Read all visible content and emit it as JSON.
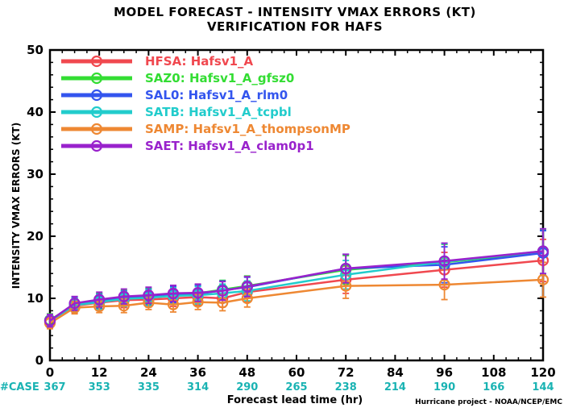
{
  "chart_data": {
    "type": "line",
    "title": "MODEL FORECAST - INTENSITY VMAX ERRORS (KT)",
    "subtitle": "VERIFICATION FOR HAFS",
    "xlabel": "Forecast lead time (hr)",
    "ylabel": "INTENSITY VMAX ERRORS (KT)",
    "xlim": [
      0,
      120
    ],
    "ylim": [
      0,
      50
    ],
    "x_ticks": [
      0,
      12,
      24,
      36,
      48,
      60,
      72,
      84,
      96,
      108,
      120
    ],
    "x_tick_labels": [
      "0",
      "12",
      "24",
      "36",
      "48",
      "60",
      "72",
      "84",
      "96",
      "108",
      "120"
    ],
    "y_ticks": [
      0,
      10,
      20,
      30,
      40,
      50
    ],
    "y_tick_labels": [
      "0",
      "10",
      "20",
      "30",
      "40",
      "50"
    ],
    "grid": false,
    "legend_position": "top-left",
    "case_label": "#CASE",
    "case_counts": [
      {
        "x": 0,
        "label": "367"
      },
      {
        "x": 12,
        "label": "353"
      },
      {
        "x": 24,
        "label": "335"
      },
      {
        "x": 36,
        "label": "314"
      },
      {
        "x": 48,
        "label": "290"
      },
      {
        "x": 60,
        "label": "265"
      },
      {
        "x": 72,
        "label": "238"
      },
      {
        "x": 84,
        "label": "214"
      },
      {
        "x": 96,
        "label": "190"
      },
      {
        "x": 108,
        "label": "166"
      },
      {
        "x": 120,
        "label": "144"
      }
    ],
    "credit": "Hurricane project - NOAA/NCEP/EMC",
    "series": [
      {
        "name": "HFSA: Hafsv1_A",
        "color": "#f0484f",
        "x": [
          0,
          6,
          12,
          18,
          24,
          30,
          36,
          42,
          48,
          72,
          96,
          120
        ],
        "y": [
          6.2,
          8.8,
          9.3,
          9.7,
          9.8,
          10.0,
          10.2,
          10.0,
          11.0,
          13.0,
          14.6,
          16.1
        ],
        "err": [
          1.0,
          1.1,
          1.1,
          1.2,
          1.2,
          1.3,
          1.3,
          1.4,
          1.6,
          2.2,
          2.8,
          3.4
        ]
      },
      {
        "name": "SAZ0: Hafsv1_A_gfsz0",
        "color": "#33dd33",
        "x": [
          0,
          6,
          12,
          18,
          24,
          30,
          36,
          42,
          48,
          72,
          96,
          120
        ],
        "y": [
          6.5,
          9.0,
          9.6,
          10.1,
          10.3,
          10.6,
          10.8,
          11.4,
          12.0,
          14.6,
          15.8,
          17.4
        ],
        "err": [
          1.0,
          1.1,
          1.2,
          1.2,
          1.3,
          1.3,
          1.4,
          1.5,
          1.6,
          2.3,
          2.9,
          3.6
        ]
      },
      {
        "name": "SAL0: Hafsv1_A_rlm0",
        "color": "#3355ee",
        "x": [
          0,
          6,
          12,
          18,
          24,
          30,
          36,
          42,
          48,
          72,
          96,
          120
        ],
        "y": [
          6.4,
          9.1,
          9.5,
          10.0,
          10.2,
          10.6,
          10.7,
          11.3,
          11.8,
          14.8,
          15.4,
          17.3
        ],
        "err": [
          1.0,
          1.1,
          1.2,
          1.2,
          1.3,
          1.3,
          1.4,
          1.5,
          1.6,
          2.3,
          2.9,
          3.6
        ]
      },
      {
        "name": "SATB: Hafsv1_A_tcpbl",
        "color": "#22cccc",
        "x": [
          0,
          6,
          12,
          18,
          24,
          30,
          36,
          42,
          48,
          72,
          96,
          120
        ],
        "y": [
          6.3,
          8.9,
          9.4,
          9.9,
          10.1,
          10.4,
          10.5,
          10.8,
          11.2,
          13.8,
          15.9,
          17.6
        ],
        "err": [
          1.0,
          1.1,
          1.2,
          1.2,
          1.3,
          1.3,
          1.4,
          1.5,
          1.6,
          2.3,
          2.9,
          3.6
        ]
      },
      {
        "name": "SAMP: Hafsv1_A_thompsonMP",
        "color": "#ee8833",
        "x": [
          0,
          6,
          12,
          18,
          24,
          30,
          36,
          42,
          48,
          72,
          96,
          120
        ],
        "y": [
          6.0,
          8.5,
          8.7,
          8.8,
          9.3,
          9.0,
          9.4,
          9.3,
          10.0,
          12.0,
          12.2,
          13.0
        ],
        "err": [
          0.9,
          1.0,
          1.0,
          1.1,
          1.1,
          1.2,
          1.2,
          1.3,
          1.4,
          2.0,
          2.4,
          2.8
        ]
      },
      {
        "name": "SAET: Hafsv1_A_clam0p1",
        "color": "#9922cc",
        "x": [
          0,
          6,
          12,
          18,
          24,
          30,
          36,
          42,
          48,
          72,
          96,
          120
        ],
        "y": [
          6.4,
          9.2,
          9.8,
          10.3,
          10.5,
          10.8,
          10.9,
          11.2,
          11.9,
          14.8,
          16.0,
          17.6
        ],
        "err": [
          1.0,
          1.1,
          1.2,
          1.2,
          1.3,
          1.3,
          1.4,
          1.5,
          1.6,
          2.3,
          2.9,
          3.6
        ]
      }
    ]
  }
}
